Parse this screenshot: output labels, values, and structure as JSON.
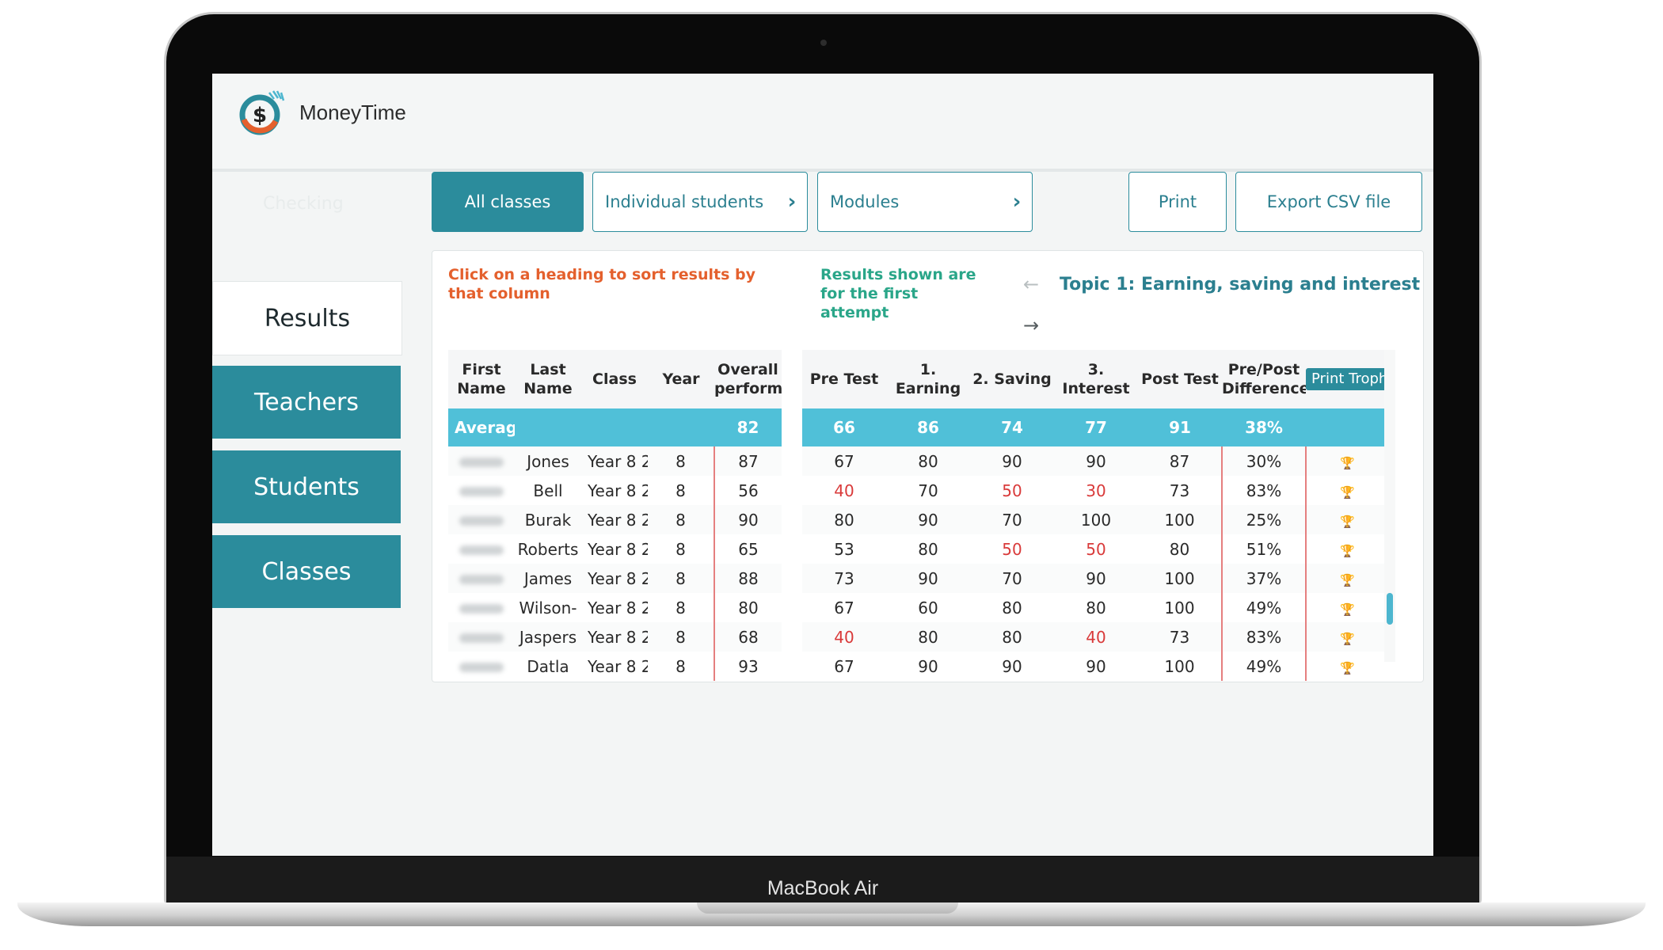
{
  "device": {
    "label": "MacBook Air"
  },
  "app": {
    "name": "MoneyTime"
  },
  "ghost_text": "Checking",
  "sidebar": {
    "items": [
      {
        "label": "Results",
        "active": true
      },
      {
        "label": "Teachers"
      },
      {
        "label": "Students"
      },
      {
        "label": "Classes"
      }
    ]
  },
  "tabs": [
    {
      "label": "All classes",
      "active": true
    },
    {
      "label": "Individual students"
    },
    {
      "label": "Modules"
    }
  ],
  "actions": {
    "print": "Print",
    "export": "Export CSV file"
  },
  "panel": {
    "hint": "Click on a heading to sort results by that column",
    "notice": "Results shown are for the first attempt",
    "topic": "Topic 1: Earning, saving and interest"
  },
  "table": {
    "left_headers": [
      "First Name",
      "Last Name",
      "Class",
      "Year",
      "Overall perform"
    ],
    "right_headers": [
      "Pre Test",
      "1. Earning",
      "2. Saving",
      "3. Interest",
      "Post Test",
      "Pre/Post Difference"
    ],
    "print_trophies": "Print Trophies",
    "average": {
      "label": "Average",
      "overall": "82",
      "values": [
        "66",
        "86",
        "74",
        "77",
        "91",
        "38%"
      ]
    },
    "rows": [
      {
        "last": "Jones",
        "class": "Year 8 2",
        "year": "8",
        "overall": "87",
        "values": [
          "67",
          "80",
          "90",
          "90",
          "87",
          "30%"
        ]
      },
      {
        "last": "Bell",
        "class": "Year 8 2",
        "year": "8",
        "overall": "56",
        "values": [
          "40",
          "70",
          "50",
          "30",
          "73",
          "83%"
        ]
      },
      {
        "last": "Burak",
        "class": "Year 8 2",
        "year": "8",
        "overall": "90",
        "values": [
          "80",
          "90",
          "70",
          "100",
          "100",
          "25%"
        ]
      },
      {
        "last": "Roberts",
        "class": "Year 8 2",
        "year": "8",
        "overall": "65",
        "values": [
          "53",
          "80",
          "50",
          "50",
          "80",
          "51%"
        ]
      },
      {
        "last": "James",
        "class": "Year 8 2",
        "year": "8",
        "overall": "88",
        "values": [
          "73",
          "90",
          "70",
          "90",
          "100",
          "37%"
        ]
      },
      {
        "last": "Wilson-",
        "class": "Year 8 2",
        "year": "8",
        "overall": "80",
        "values": [
          "67",
          "60",
          "80",
          "80",
          "100",
          "49%"
        ]
      },
      {
        "last": "Jaspers",
        "class": "Year 8 2",
        "year": "8",
        "overall": "68",
        "values": [
          "40",
          "80",
          "80",
          "40",
          "73",
          "83%"
        ]
      },
      {
        "last": "Datla",
        "class": "Year 8 2",
        "year": "8",
        "overall": "93",
        "values": [
          "67",
          "90",
          "90",
          "90",
          "100",
          "49%"
        ]
      }
    ],
    "low_mark_color": "#d93a3a"
  },
  "colors": {
    "teal": "#2b8c9c",
    "avg_row": "#50c0d8",
    "hint": "#e4602d",
    "notice": "#2aa689"
  },
  "icons": [
    "moneytime-logo",
    "chevron-right-icon",
    "arrow-left-icon",
    "arrow-right-icon",
    "trophy-icon"
  ]
}
